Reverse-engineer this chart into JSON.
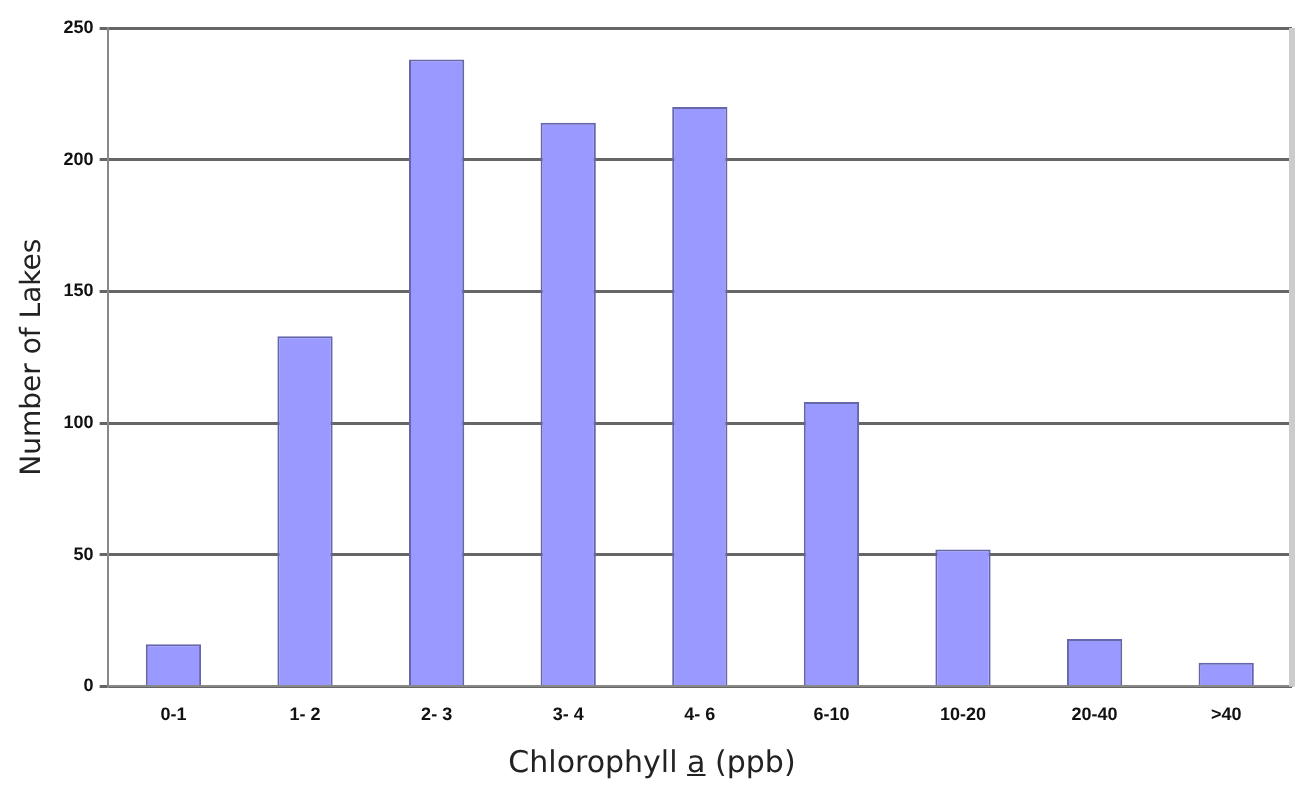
{
  "chart_data": {
    "type": "bar",
    "xlabel": "Chlorophyll a (ppb)",
    "ylabel": "Number of Lakes",
    "categories": [
      "0-1",
      "1- 2",
      "2- 3",
      "3- 4",
      "4- 6",
      "6-10",
      "10-20",
      "20-40",
      ">40"
    ],
    "values": [
      16,
      133,
      238,
      214,
      220,
      108,
      52,
      18,
      9
    ],
    "color": "#9999ff",
    "ylim": [
      0,
      250
    ],
    "yticks": [
      0,
      50,
      100,
      150,
      200,
      250
    ],
    "grid": "y",
    "legend": false
  }
}
